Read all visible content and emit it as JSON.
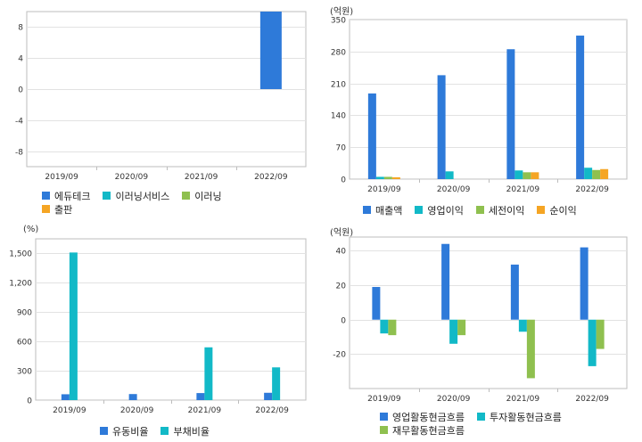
{
  "colors": {
    "blue": "#2e7ad9",
    "cyan": "#12b9c7",
    "green": "#8fc04f",
    "orange": "#f5a524",
    "grid": "#e2e2e2",
    "frame": "#bdbdbd"
  },
  "chart_data": [
    {
      "type": "bar",
      "unit": "",
      "categories": [
        "2019/09",
        "2020/09",
        "2021/09",
        "2022/09"
      ],
      "yticks": [
        -8,
        -4,
        0,
        4,
        8
      ],
      "ylim": [
        -10,
        10
      ],
      "grid": true,
      "series": [
        {
          "name": "에듀테크",
          "color": "#2e7ad9",
          "values": [
            0,
            0,
            0,
            10
          ]
        },
        {
          "name": "이러닝서비스",
          "color": "#12b9c7",
          "values": [
            0,
            0,
            0,
            0
          ]
        },
        {
          "name": "이러닝",
          "color": "#8fc04f",
          "values": [
            0,
            0,
            0,
            0
          ]
        },
        {
          "name": "출판",
          "color": "#f5a524",
          "values": [
            0,
            0,
            0,
            0
          ]
        }
      ],
      "legend_rows": [
        [
          0,
          1,
          2
        ],
        [
          3
        ]
      ]
    },
    {
      "type": "bar",
      "unit": "(억원)",
      "categories": [
        "2019/09",
        "2020/09",
        "2021/09",
        "2022/09"
      ],
      "yticks": [
        0,
        70,
        140,
        210,
        280,
        350
      ],
      "ylim": [
        0,
        350
      ],
      "grid": true,
      "series": [
        {
          "name": "매출액",
          "color": "#2e7ad9",
          "values": [
            188,
            228,
            285,
            315
          ]
        },
        {
          "name": "영업이익",
          "color": "#12b9c7",
          "values": [
            5,
            17,
            19,
            25
          ]
        },
        {
          "name": "세전이익",
          "color": "#8fc04f",
          "values": [
            5,
            0,
            15,
            20
          ]
        },
        {
          "name": "순이익",
          "color": "#f5a524",
          "values": [
            4,
            0,
            15,
            22
          ]
        }
      ],
      "legend_rows": [
        [
          0,
          1,
          2,
          3
        ]
      ]
    },
    {
      "type": "bar",
      "unit": "(%)",
      "categories": [
        "2019/09",
        "2020/09",
        "2021/09",
        "2022/09"
      ],
      "yticks": [
        0,
        300,
        600,
        900,
        1200,
        1500
      ],
      "ytick_labels": [
        "0",
        "300",
        "600",
        "900",
        "1,200",
        "1,500"
      ],
      "ylim": [
        0,
        1650
      ],
      "grid": true,
      "series": [
        {
          "name": "유동비율",
          "color": "#2e7ad9",
          "values": [
            60,
            62,
            72,
            75
          ]
        },
        {
          "name": "부채비율",
          "color": "#12b9c7",
          "values": [
            1510,
            0,
            540,
            335
          ]
        }
      ],
      "legend_rows": [
        [
          0,
          1
        ]
      ]
    },
    {
      "type": "bar",
      "unit": "(억원)",
      "categories": [
        "2019/09",
        "2020/09",
        "2021/09",
        "2022/09"
      ],
      "yticks": [
        -20,
        0,
        20,
        40
      ],
      "ylim": [
        -40,
        48
      ],
      "grid": true,
      "series": [
        {
          "name": "영업활동현금흐름",
          "color": "#2e7ad9",
          "values": [
            19,
            44,
            32,
            42
          ]
        },
        {
          "name": "투자활동현금흐름",
          "color": "#12b9c7",
          "values": [
            -8,
            -14,
            -7,
            -27
          ]
        },
        {
          "name": "재무활동현금흐름",
          "color": "#8fc04f",
          "values": [
            -9,
            -9,
            -34,
            -17
          ]
        }
      ],
      "legend_rows": [
        [
          0,
          1
        ],
        [
          2
        ]
      ]
    }
  ]
}
